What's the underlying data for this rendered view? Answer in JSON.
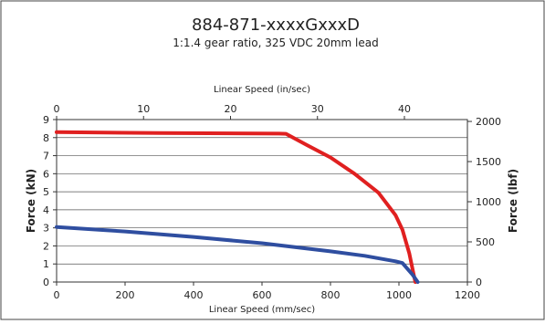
{
  "chart_data": {
    "type": "line",
    "title": "884-871-xxxxGxxxD",
    "subtitle": "1:1.4 gear ratio, 325 VDC 20mm lead",
    "xlabel": "Linear Speed (mm/sec)",
    "x2label": "Linear Speed (in/sec)",
    "ylabel": "Force (kN)",
    "y2label": "Force (lbf)",
    "xlim": [
      0,
      1200
    ],
    "ylim": [
      0,
      9
    ],
    "x2lim": [
      0,
      47.244
    ],
    "y2lim": [
      0,
      2023.3
    ],
    "x_ticks": [
      "0",
      "200",
      "400",
      "600",
      "800",
      "1000",
      "1200"
    ],
    "x2_ticks": [
      "0",
      "10",
      "20",
      "30",
      "40"
    ],
    "y_ticks": [
      "0",
      "1",
      "2",
      "3",
      "4",
      "5",
      "6",
      "7",
      "8",
      "9"
    ],
    "y2_ticks": [
      "0",
      "500",
      "1000",
      "1500",
      "2000"
    ],
    "grid": true,
    "series": [
      {
        "color": "#e02020",
        "points": [
          [
            0,
            8.3
          ],
          [
            300,
            8.25
          ],
          [
            650,
            8.22
          ],
          [
            670,
            8.21
          ],
          [
            730,
            7.6
          ],
          [
            800,
            6.9
          ],
          [
            870,
            6.0
          ],
          [
            940,
            4.95
          ],
          [
            990,
            3.7
          ],
          [
            1010,
            2.9
          ],
          [
            1030,
            1.6
          ],
          [
            1042,
            0.5
          ],
          [
            1048,
            0.0
          ]
        ]
      },
      {
        "color": "#2f4ea0",
        "points": [
          [
            0,
            3.05
          ],
          [
            200,
            2.8
          ],
          [
            400,
            2.5
          ],
          [
            600,
            2.15
          ],
          [
            800,
            1.7
          ],
          [
            900,
            1.45
          ],
          [
            990,
            1.15
          ],
          [
            1010,
            1.05
          ],
          [
            1040,
            0.4
          ],
          [
            1055,
            0.0
          ]
        ]
      }
    ]
  }
}
